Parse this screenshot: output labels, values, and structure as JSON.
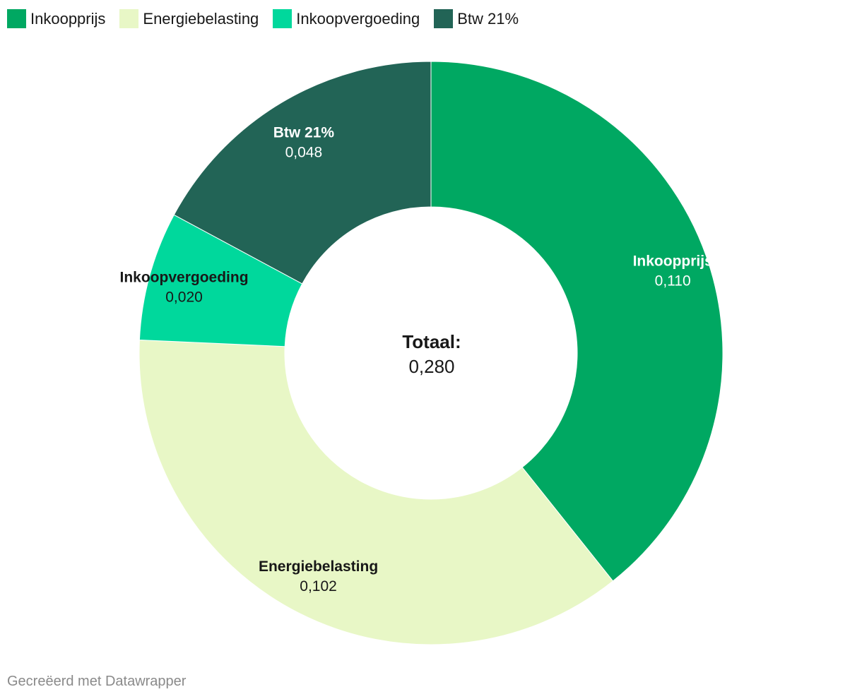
{
  "chart_data": {
    "type": "pie",
    "variant": "donut",
    "categories": [
      "Inkoopprijs",
      "Energiebelasting",
      "Inkoopvergoeding",
      "Btw 21%"
    ],
    "values": [
      0.11,
      0.102,
      0.02,
      0.048
    ],
    "value_labels": [
      "0,110",
      "0,102",
      "0,020",
      "0,048"
    ],
    "colors": [
      "#00a862",
      "#e8f7c6",
      "#00d89c",
      "#226456"
    ],
    "label_colors": [
      "#ffffff",
      "#181818",
      "#181818",
      "#ffffff"
    ],
    "legend_position": "top-left",
    "center": {
      "title": "Totaal:",
      "value": "0,280"
    }
  },
  "legend": {
    "items": [
      {
        "label": "Inkoopprijs",
        "color": "#00a862"
      },
      {
        "label": "Energiebelasting",
        "color": "#e8f7c6"
      },
      {
        "label": "Inkoopvergoeding",
        "color": "#00d89c"
      },
      {
        "label": "Btw 21%",
        "color": "#226456"
      }
    ]
  },
  "footer": {
    "credit": "Gecreëerd met Datawrapper"
  }
}
